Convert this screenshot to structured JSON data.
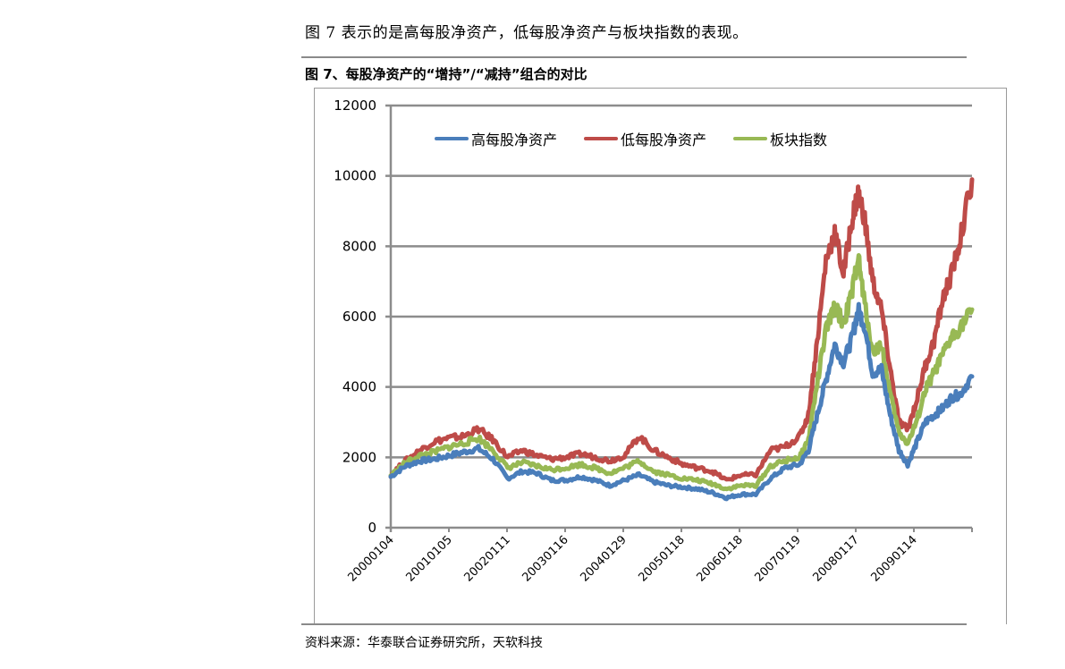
{
  "intro_text": "图 7 表示的是高每股净资产，低每股净资产与板块指数的表现。",
  "figure_title": "图 7、每股净资产的“增持”/“减持”组合的对比",
  "source_text": "资料来源：华泰联合证券研究所，天软科技",
  "colors": {
    "high": "#4a7ebb",
    "low": "#be4b48",
    "index": "#98b954",
    "grid": "#8c8c8c"
  },
  "chart_data": {
    "type": "line",
    "title": "图 7、每股净资产的“增持”/“减持”组合的对比",
    "xlabel": "",
    "ylabel": "",
    "ylim": [
      0,
      12000
    ],
    "yticks": [
      0,
      2000,
      4000,
      6000,
      8000,
      10000,
      12000
    ],
    "grid": true,
    "legend_position": "top",
    "x_tick_labels": [
      "20000104",
      "20010105",
      "20020111",
      "20030116",
      "20040129",
      "20050118",
      "20060118",
      "20070119",
      "20080117",
      "20090114"
    ],
    "x": [
      2000.0,
      2000.25,
      2000.5,
      2000.75,
      2001.0,
      2001.25,
      2001.5,
      2001.75,
      2002.0,
      2002.25,
      2002.5,
      2002.75,
      2003.0,
      2003.25,
      2003.5,
      2003.75,
      2004.0,
      2004.25,
      2004.5,
      2004.75,
      2005.0,
      2005.25,
      2005.5,
      2005.75,
      2006.0,
      2006.25,
      2006.5,
      2006.75,
      2007.0,
      2007.15,
      2007.3,
      2007.45,
      2007.6,
      2007.75,
      2007.9,
      2008.0,
      2008.1,
      2008.25,
      2008.4,
      2008.55,
      2008.7,
      2008.85,
      2009.0,
      2009.15,
      2009.3,
      2009.45,
      2009.6,
      2009.75,
      2009.95
    ],
    "series": [
      {
        "name": "高每股净资产",
        "color": "#4a7ebb",
        "values": [
          1450,
          1750,
          1900,
          1950,
          2050,
          2150,
          2250,
          1950,
          1400,
          1600,
          1550,
          1350,
          1350,
          1450,
          1350,
          1200,
          1350,
          1500,
          1300,
          1200,
          1150,
          1100,
          1000,
          850,
          950,
          950,
          1400,
          1700,
          1800,
          2200,
          3200,
          4200,
          5200,
          4700,
          5400,
          6200,
          5800,
          4400,
          4500,
          3200,
          2200,
          1800,
          2400,
          3000,
          3200,
          3400,
          3700,
          3800,
          4300
        ]
      },
      {
        "name": "低每股净资产",
        "color": "#be4b48",
        "values": [
          1500,
          1900,
          2200,
          2450,
          2550,
          2600,
          2800,
          2500,
          2000,
          2200,
          2050,
          1950,
          2000,
          2100,
          2000,
          1900,
          2050,
          2600,
          2200,
          2000,
          1800,
          1700,
          1600,
          1350,
          1500,
          1500,
          2200,
          2300,
          2600,
          3200,
          5300,
          7600,
          8400,
          7200,
          8800,
          9500,
          8900,
          7000,
          6200,
          4500,
          3000,
          2800,
          3600,
          4600,
          5300,
          6500,
          7200,
          8200,
          9900
        ]
      },
      {
        "name": "板块指数",
        "color": "#98b954",
        "values": [
          1480,
          1850,
          2050,
          2150,
          2300,
          2400,
          2550,
          2200,
          1700,
          1850,
          1750,
          1650,
          1700,
          1800,
          1700,
          1550,
          1700,
          1900,
          1600,
          1500,
          1400,
          1350,
          1250,
          1100,
          1200,
          1200,
          1750,
          1900,
          2000,
          2500,
          4100,
          5600,
          6300,
          5800,
          6700,
          7700,
          6500,
          5000,
          5200,
          3800,
          2700,
          2400,
          3000,
          3900,
          4400,
          4900,
          5400,
          5700,
          6200
        ]
      }
    ]
  }
}
